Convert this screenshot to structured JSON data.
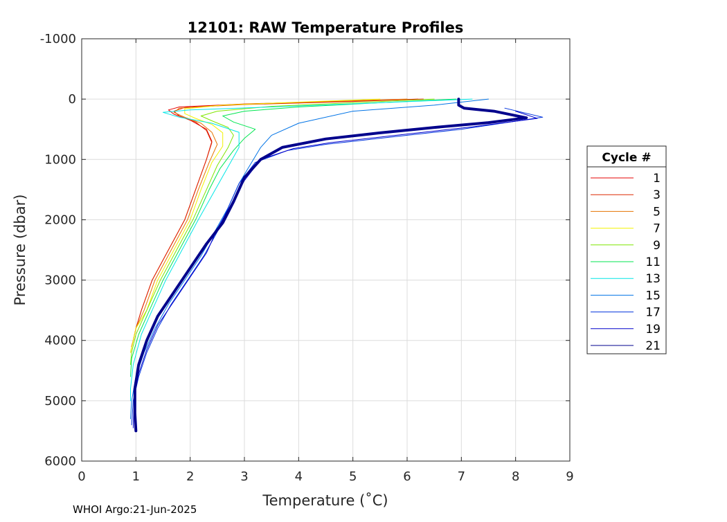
{
  "chart_data": {
    "type": "line",
    "title": "12101: RAW Temperature Profiles",
    "xlabel": "Temperature (˚C)",
    "ylabel": "Pressure (dbar)",
    "xlim": [
      0,
      9
    ],
    "ylim": [
      6000,
      -1000
    ],
    "y_reversed": true,
    "grid": true,
    "x_ticks": [
      "0",
      "1",
      "2",
      "3",
      "4",
      "5",
      "6",
      "7",
      "8",
      "9"
    ],
    "y_ticks": [
      "-1000",
      "0",
      "1000",
      "2000",
      "3000",
      "4000",
      "5000",
      "6000"
    ],
    "legend_title": "Cycle #",
    "legend_position": "outside-right",
    "series": [
      {
        "name": "1",
        "color": "#e50000",
        "width": 1.0,
        "x": [
          6.3,
          5.0,
          3.0,
          1.8,
          1.6,
          1.7,
          2.0,
          2.3,
          2.4,
          2.3,
          2.1,
          1.9,
          1.6,
          1.3,
          1.1,
          1.0,
          0.95,
          0.92
        ],
        "y": [
          0,
          30,
          80,
          130,
          180,
          250,
          350,
          500,
          700,
          1000,
          1500,
          2000,
          2500,
          3000,
          3500,
          3800,
          4000,
          4100
        ]
      },
      {
        "name": "3",
        "color": "#dd2800",
        "width": 1.0,
        "x": [
          6.2,
          5.0,
          3.0,
          1.9,
          1.7,
          1.8,
          2.1,
          2.3,
          2.4,
          2.3,
          2.1,
          1.9,
          1.6,
          1.3,
          1.1,
          1.0,
          0.95,
          0.92
        ],
        "y": [
          0,
          40,
          90,
          140,
          200,
          280,
          380,
          520,
          720,
          1000,
          1500,
          2000,
          2500,
          3000,
          3500,
          3800,
          4000,
          4100
        ]
      },
      {
        "name": "5",
        "color": "#e67300",
        "width": 1.0,
        "x": [
          6.0,
          4.5,
          2.8,
          1.8,
          1.7,
          1.9,
          2.2,
          2.4,
          2.5,
          2.35,
          2.15,
          1.95,
          1.65,
          1.35,
          1.15,
          1.0,
          0.95,
          0.9
        ],
        "y": [
          0,
          40,
          90,
          150,
          220,
          300,
          400,
          550,
          750,
          1050,
          1500,
          2000,
          2500,
          3000,
          3500,
          3800,
          4000,
          4200
        ]
      },
      {
        "name": "7",
        "color": "#f2f200",
        "width": 1.0,
        "x": [
          5.5,
          4.0,
          2.6,
          1.9,
          1.9,
          2.1,
          2.4,
          2.6,
          2.6,
          2.4,
          2.2,
          2.0,
          1.7,
          1.4,
          1.2,
          1.0,
          0.95,
          0.9
        ],
        "y": [
          0,
          50,
          100,
          160,
          240,
          320,
          420,
          560,
          780,
          1050,
          1500,
          2000,
          2500,
          3000,
          3500,
          3800,
          4000,
          4200
        ]
      },
      {
        "name": "9",
        "color": "#7fe600",
        "width": 1.0,
        "x": [
          6.5,
          5.0,
          3.5,
          2.5,
          2.2,
          2.4,
          2.7,
          2.8,
          2.7,
          2.5,
          2.3,
          2.05,
          1.75,
          1.45,
          1.2,
          1.0,
          0.92,
          0.9
        ],
        "y": [
          0,
          60,
          120,
          200,
          280,
          360,
          470,
          600,
          800,
          1100,
          1500,
          2000,
          2500,
          3000,
          3500,
          3900,
          4200,
          4400
        ]
      },
      {
        "name": "11",
        "color": "#00e650",
        "width": 1.0,
        "x": [
          6.9,
          5.5,
          4.0,
          3.0,
          2.6,
          2.8,
          3.2,
          3.0,
          2.8,
          2.55,
          2.35,
          2.1,
          1.8,
          1.5,
          1.25,
          1.05,
          0.92,
          0.9
        ],
        "y": [
          0,
          60,
          130,
          200,
          280,
          380,
          500,
          650,
          850,
          1150,
          1500,
          2000,
          2500,
          3000,
          3500,
          3900,
          4300,
          4600
        ]
      },
      {
        "name": "13",
        "color": "#00e6e6",
        "width": 1.0,
        "x": [
          7.2,
          5.5,
          3.5,
          2.0,
          1.5,
          1.8,
          2.4,
          2.9,
          2.9,
          2.65,
          2.4,
          2.15,
          1.85,
          1.55,
          1.3,
          1.1,
          0.95,
          0.9,
          0.9
        ],
        "y": [
          0,
          60,
          130,
          180,
          220,
          300,
          400,
          550,
          800,
          1200,
          1600,
          2000,
          2500,
          3000,
          3500,
          3900,
          4400,
          4800,
          5000
        ]
      },
      {
        "name": "15",
        "color": "#0073e6",
        "width": 1.0,
        "x": [
          7.5,
          6.5,
          5.0,
          4.0,
          3.5,
          3.3,
          3.1,
          2.9,
          2.7,
          2.45,
          2.2,
          1.9,
          1.6,
          1.35,
          1.15,
          1.0,
          0.92,
          0.9
        ],
        "y": [
          0,
          100,
          200,
          400,
          600,
          800,
          1100,
          1400,
          1800,
          2200,
          2600,
          3000,
          3400,
          3800,
          4200,
          4600,
          5000,
          5300
        ]
      },
      {
        "name": "17",
        "color": "#0033dd",
        "width": 1.0,
        "x": [
          7.8,
          8.5,
          7.0,
          5.5,
          4.5,
          3.8,
          3.2,
          2.9,
          2.7,
          2.5,
          2.25,
          1.95,
          1.65,
          1.4,
          1.2,
          1.05,
          0.95,
          0.92
        ],
        "y": [
          150,
          300,
          500,
          650,
          750,
          850,
          1050,
          1400,
          1800,
          2200,
          2600,
          3000,
          3400,
          3800,
          4200,
          4600,
          5000,
          5400
        ]
      },
      {
        "name": "19",
        "color": "#0000cc",
        "width": 1.0,
        "x": [
          8.0,
          8.4,
          7.2,
          5.8,
          4.6,
          3.9,
          3.3,
          3.0,
          2.75,
          2.5,
          2.3,
          2.0,
          1.7,
          1.4,
          1.2,
          1.05,
          0.97,
          0.95
        ],
        "y": [
          200,
          320,
          460,
          600,
          720,
          820,
          1000,
          1350,
          1750,
          2150,
          2550,
          2950,
          3350,
          3750,
          4150,
          4550,
          4950,
          5450
        ]
      },
      {
        "name": "21",
        "color": "#00008c",
        "width": 4.0,
        "x": [
          6.95,
          6.95,
          7.05,
          7.6,
          8.2,
          7.5,
          6.5,
          5.5,
          4.5,
          3.7,
          3.3,
          3.0,
          2.8,
          2.6,
          2.3,
          2.0,
          1.7,
          1.4,
          1.2,
          1.05,
          0.98,
          0.98,
          1.0
        ],
        "y": [
          0,
          100,
          150,
          200,
          310,
          390,
          470,
          560,
          660,
          800,
          1000,
          1300,
          1700,
          2050,
          2400,
          2800,
          3200,
          3600,
          4000,
          4400,
          4800,
          5200,
          5500
        ]
      }
    ]
  },
  "footer": "WHOI Argo:21-Jun-2025"
}
